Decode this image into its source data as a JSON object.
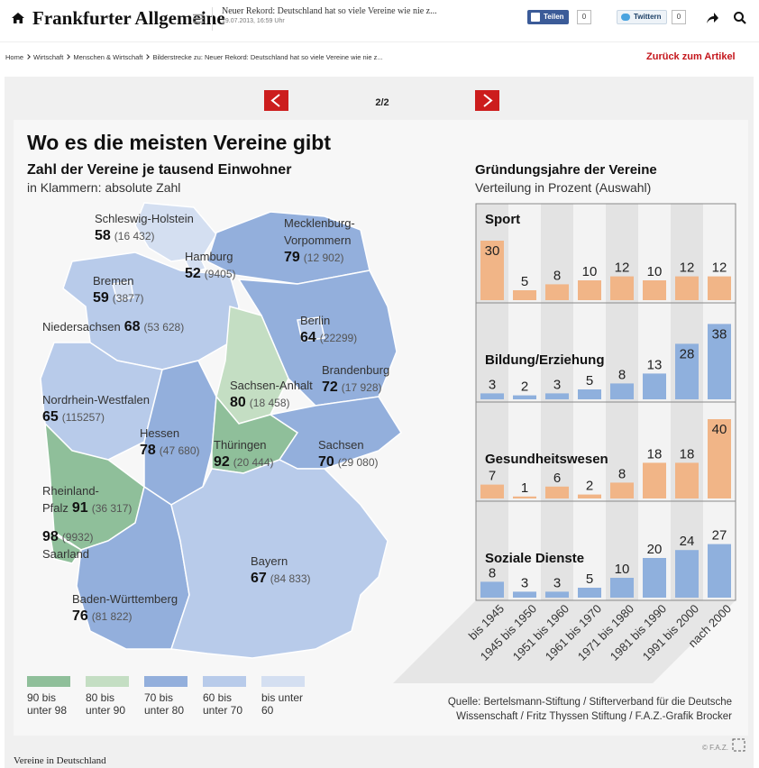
{
  "header": {
    "logo": "Frankfurter Allgemeine",
    "headline": "Neuer Rekord: Deutschland hat so viele Vereine wie nie z...",
    "date": "19.07.2013, 16:59 Uhr",
    "share": "Teilen",
    "share_count": 0,
    "tweet": "Twittern",
    "tweet_count": 0
  },
  "breadcrumb": {
    "items": [
      "Home",
      "Wirtschaft",
      "Menschen & Wirtschaft",
      "Bilderstrecke zu: Neuer Rekord: Deutschland hat so viele Vereine wie nie z..."
    ],
    "back": "Zurück zum Artikel"
  },
  "gallery": {
    "position": "2/2"
  },
  "graphic": {
    "title": "Wo es die meisten Vereine gibt",
    "map": {
      "subtitle": "Zahl der Vereine je tausend Einwohner",
      "note": "in Klammern: absolute Zahl",
      "states": [
        {
          "name": [
            "Schleswig-Holstein"
          ],
          "value": 58,
          "count": "(16 432)"
        },
        {
          "name": [
            "Mecklenburg-",
            "Vorpommern"
          ],
          "value": 79,
          "count": "(12 902)"
        },
        {
          "name": [
            "Hamburg"
          ],
          "value": 52,
          "count": "(9405)"
        },
        {
          "name": [
            "Bremen"
          ],
          "value": 59,
          "count": "(3877)"
        },
        {
          "name": [
            "Niedersachsen"
          ],
          "value": 68,
          "count": "(53 628)"
        },
        {
          "name": [
            "Berlin"
          ],
          "value": 64,
          "count": "(22299)"
        },
        {
          "name": [
            "Brandenburg"
          ],
          "value": 72,
          "count": "(17 928)"
        },
        {
          "name": [
            "Sachsen-Anhalt"
          ],
          "value": 80,
          "count": "(18 458)"
        },
        {
          "name": [
            "Nordrhein-Westfalen"
          ],
          "value": 65,
          "count": "(115257)"
        },
        {
          "name": [
            "Thüringen"
          ],
          "value": 92,
          "count": "(20 444)"
        },
        {
          "name": [
            "Hessen"
          ],
          "value": 78,
          "count": "(47 680)"
        },
        {
          "name": [
            "Sachsen"
          ],
          "value": 70,
          "count": "(29 080)"
        },
        {
          "name": [
            "Rheinland-",
            "Pfalz"
          ],
          "value": 91,
          "count": "(36 317)"
        },
        {
          "name": [
            "Saarland"
          ],
          "value": 98,
          "count": "(9932)"
        },
        {
          "name": [
            "Bayern"
          ],
          "value": 67,
          "count": "(84 833)"
        },
        {
          "name": [
            "Baden-Württemberg"
          ],
          "value": 76,
          "count": "(81 822)"
        }
      ],
      "legend": [
        {
          "lines": [
            "90 bis",
            "unter 98"
          ],
          "color": "#8fbf9a"
        },
        {
          "lines": [
            "80 bis",
            "unter 90"
          ],
          "color": "#c4dec3"
        },
        {
          "lines": [
            "70 bis",
            "unter 80"
          ],
          "color": "#93afdc"
        },
        {
          "lines": [
            "60 bis",
            "unter 70"
          ],
          "color": "#b8cbea"
        },
        {
          "lines": [
            "bis unter",
            "60"
          ],
          "color": "#d4dff1"
        }
      ]
    },
    "chart": {
      "title": "Gründungsjahre der Vereine",
      "subtitle": "Verteilung in Prozent (Auswahl)",
      "categories": [
        "bis 1945",
        "1945 bis 1950",
        "1951 bis 1960",
        "1961 bis 1970",
        "1971 bis 1980",
        "1981 bis 1990",
        "1991 bis 2000",
        "nach 2000"
      ],
      "panels": [
        {
          "name": "Sport",
          "color": "#f1b587",
          "values": [
            30,
            5,
            8,
            10,
            12,
            10,
            12,
            12
          ]
        },
        {
          "name": "Bildung/Erziehung",
          "color": "#8fb0dd",
          "values": [
            3,
            2,
            3,
            5,
            8,
            13,
            28,
            38
          ]
        },
        {
          "name": "Gesundheitswesen",
          "color": "#f1b587",
          "values": [
            7,
            1,
            6,
            2,
            8,
            18,
            18,
            40
          ]
        },
        {
          "name": "Soziale Dienste",
          "color": "#8fb0dd",
          "values": [
            8,
            3,
            3,
            5,
            10,
            20,
            24,
            27
          ]
        }
      ]
    },
    "source": [
      "Quelle: Bertelsmann-Stiftung / Stifterverband für die Deutsche",
      "Wissenschaft / Fritz Thyssen Stiftung / F.A.Z.-Grafik Brocker"
    ],
    "copyright": "© F.A.Z."
  },
  "caption": "Vereine in Deutschland"
}
